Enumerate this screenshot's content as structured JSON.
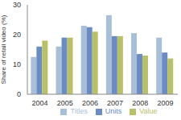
{
  "chart_data": {
    "type": "bar",
    "y_label": "Share of retail video (%)",
    "categories": [
      "2004",
      "2005",
      "2006",
      "2007",
      "2008",
      "2009"
    ],
    "series": [
      {
        "name": "Titles",
        "color": "#a9bfd8",
        "values": [
          12.5,
          16,
          23,
          26.5,
          20.5,
          19
        ]
      },
      {
        "name": "Units",
        "color": "#6b8bc3",
        "values": [
          16,
          19,
          22.5,
          19.5,
          13.5,
          14
        ]
      },
      {
        "name": "Value",
        "color": "#b9c06a",
        "values": [
          18,
          19,
          21,
          19.5,
          13,
          12
        ]
      }
    ],
    "ylim": [
      0,
      30
    ],
    "yticks": [
      0,
      10,
      20,
      30
    ],
    "grid": false,
    "legend": "bottom"
  }
}
